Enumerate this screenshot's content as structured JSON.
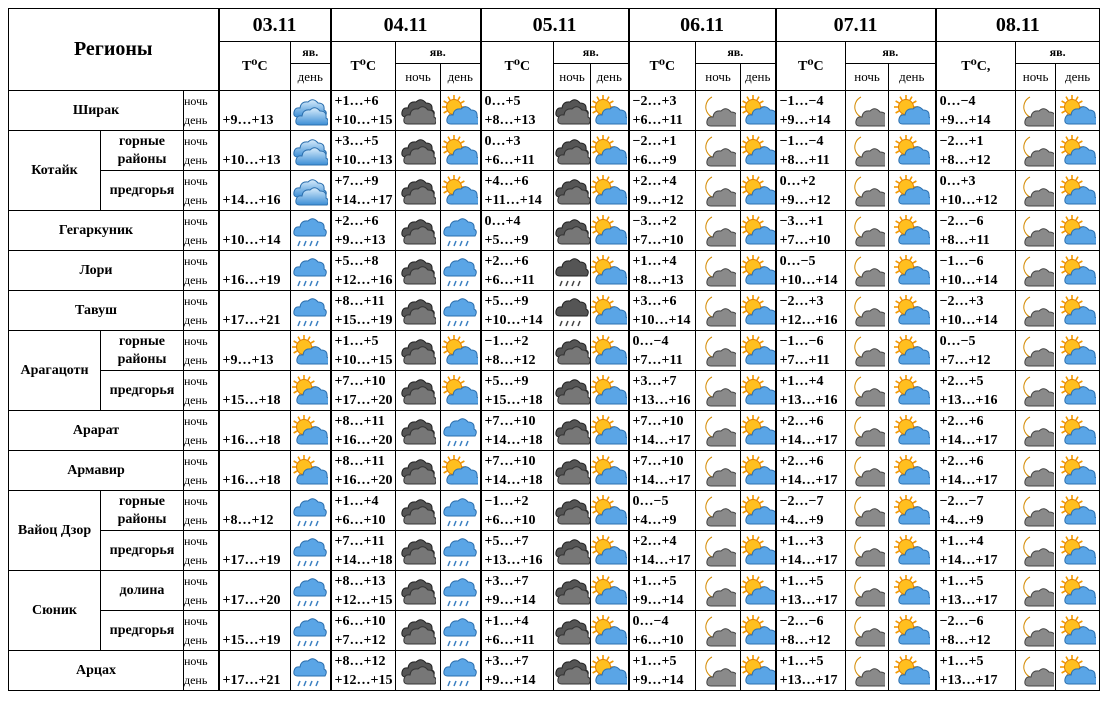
{
  "header": {
    "title": "Регионы",
    "dates": [
      {
        "date": "03.11",
        "t": "T⁰C",
        "icon": "яв.",
        "day": "день"
      },
      {
        "date": "04.11",
        "t": "T⁰C",
        "icon": "яв.",
        "night": "ночь",
        "day": "день"
      },
      {
        "date": "05.11",
        "t": "T⁰C",
        "icon": "яв.",
        "night": "ночь",
        "day": "день"
      },
      {
        "date": "06.11",
        "t": "T⁰C",
        "icon": "яв.",
        "night": "ночь",
        "day": "день"
      },
      {
        "date": "07.11",
        "t": "T⁰C",
        "icon": "яв.",
        "night": "ночь",
        "day": "день"
      },
      {
        "date": "08.11",
        "t": "T⁰C,",
        "icon": "яв.",
        "night": "ночь",
        "day": "день"
      }
    ]
  },
  "regions": [
    {
      "name": "Ширак",
      "subs": [
        {
          "labels": [
            "ночь",
            "день"
          ],
          "temps": [
            [
              "+9…+13"
            ],
            [
              "+1…+6",
              "+10…+15"
            ],
            [
              "0…+5",
              "+8…+13"
            ],
            [
              "−2…+3",
              "+6…+11"
            ],
            [
              "−1…−4",
              "+9…+14"
            ],
            [
              "0…−4",
              "+9…+14"
            ]
          ]
        }
      ]
    },
    {
      "name": "Котайк",
      "subs": [
        {
          "name": "горные районы",
          "labels": [
            "ночь",
            "день"
          ],
          "temps": [
            [
              "+10…+13"
            ],
            [
              "+3…+5",
              "+10…+13"
            ],
            [
              "0…+3",
              "+6…+11"
            ],
            [
              "−2…+1",
              "+6…+9"
            ],
            [
              "−1…−4",
              "+8…+11"
            ],
            [
              "−2…+1",
              "+8…+12"
            ]
          ]
        },
        {
          "name": "предгорья",
          "labels": [
            "ночь",
            "день"
          ],
          "temps": [
            [
              "+14…+16"
            ],
            [
              "+7…+9",
              "+14…+17"
            ],
            [
              "+4…+6",
              "+11…+14"
            ],
            [
              "+2…+4",
              "+9…+12"
            ],
            [
              "0…+2",
              "+9…+12"
            ],
            [
              "0…+3",
              "+10…+12"
            ]
          ]
        }
      ]
    },
    {
      "name": "Гегаркуник",
      "subs": [
        {
          "labels": [
            "ночь",
            "день"
          ],
          "temps": [
            [
              "+10…+14"
            ],
            [
              "+2…+6",
              "+9…+13"
            ],
            [
              "0…+4",
              "+5…+9"
            ],
            [
              "−3…+2",
              "+7…+10"
            ],
            [
              "−3…+1",
              "+7…+10"
            ],
            [
              "−2…−6",
              "+8…+11"
            ]
          ]
        }
      ]
    },
    {
      "name": "Лори",
      "subs": [
        {
          "labels": [
            "ночь",
            "день"
          ],
          "temps": [
            [
              "+16…+19"
            ],
            [
              "+5…+8",
              "+12…+16"
            ],
            [
              "+2…+6",
              "+6…+11"
            ],
            [
              "+1…+4",
              "+8…+13"
            ],
            [
              "0…−5",
              "+10…+14"
            ],
            [
              "−1…−6",
              "+10…+14"
            ]
          ]
        }
      ]
    },
    {
      "name": "Тавуш",
      "subs": [
        {
          "labels": [
            "ночь",
            "день"
          ],
          "temps": [
            [
              "+17…+21"
            ],
            [
              "+8…+11",
              "+15…+19"
            ],
            [
              "+5…+9",
              "+10…+14"
            ],
            [
              "+3…+6",
              "+10…+14"
            ],
            [
              "−2…+3",
              "+12…+16"
            ],
            [
              "−2…+3",
              "+10…+14"
            ]
          ]
        }
      ]
    },
    {
      "name": "Арагацотн",
      "subs": [
        {
          "name": "горные районы",
          "labels": [
            "ночь",
            "день"
          ],
          "temps": [
            [
              "+9…+13"
            ],
            [
              "+1…+5",
              "+10…+15"
            ],
            [
              "−1…+2",
              "+8…+12"
            ],
            [
              "0…−4",
              "+7…+11"
            ],
            [
              "−1…−6",
              "+7…+11"
            ],
            [
              "0…−5",
              "+7…+12"
            ]
          ]
        },
        {
          "name": "предгорья",
          "labels": [
            "ночь",
            "день"
          ],
          "temps": [
            [
              "+15…+18"
            ],
            [
              "+7…+10",
              "+17…+20"
            ],
            [
              "+5…+9",
              "+15…+18"
            ],
            [
              "+3…+7",
              "+13…+16"
            ],
            [
              "+1…+4",
              "+13…+16"
            ],
            [
              "+2…+5",
              "+13…+16"
            ]
          ]
        }
      ]
    },
    {
      "name": "Арарат",
      "subs": [
        {
          "labels": [
            "ночь",
            "день"
          ],
          "temps": [
            [
              "+16…+18"
            ],
            [
              "+8…+11",
              "+16…+20"
            ],
            [
              "+7…+10",
              "+14…+18"
            ],
            [
              "+7…+10",
              "+14…+17"
            ],
            [
              "+2…+6",
              "+14…+17"
            ],
            [
              "+2…+6",
              "+14…+17"
            ]
          ]
        }
      ]
    },
    {
      "name": "Армавир",
      "subs": [
        {
          "labels": [
            "ночь",
            "день"
          ],
          "temps": [
            [
              "+16…+18"
            ],
            [
              "+8…+11",
              "+16…+20"
            ],
            [
              "+7…+10",
              "+14…+18"
            ],
            [
              "+7…+10",
              "+14…+17"
            ],
            [
              "+2…+6",
              "+14…+17"
            ],
            [
              "+2…+6",
              "+14…+17"
            ]
          ]
        }
      ]
    },
    {
      "name": "Вайоц Дзор",
      "subs": [
        {
          "name": "горные районы",
          "labels": [
            "ночь",
            "день"
          ],
          "temps": [
            [
              "+8…+12"
            ],
            [
              "+1…+4",
              "+6…+10"
            ],
            [
              "−1…+2",
              "+6…+10"
            ],
            [
              "0…−5",
              "+4…+9"
            ],
            [
              "−2…−7",
              "+4…+9"
            ],
            [
              "−2…−7",
              "+4…+9"
            ]
          ]
        },
        {
          "name": "предгорья",
          "labels": [
            "ночь",
            "день"
          ],
          "temps": [
            [
              "+17…+19"
            ],
            [
              "+7…+11",
              "+14…+18"
            ],
            [
              "+5…+7",
              "+13…+16"
            ],
            [
              "+2…+4",
              "+14…+17"
            ],
            [
              "+1…+3",
              "+14…+17"
            ],
            [
              "+1…+4",
              "+14…+17"
            ]
          ]
        }
      ]
    },
    {
      "name": "Сюник",
      "subs": [
        {
          "name": "долина",
          "labels": [
            "ночь",
            "день"
          ],
          "temps": [
            [
              "+17…+20"
            ],
            [
              "+8…+13",
              "+12…+15"
            ],
            [
              "+3…+7",
              "+9…+14"
            ],
            [
              "+1…+5",
              "+9…+14"
            ],
            [
              "+1…+5",
              "+13…+17"
            ],
            [
              "+1…+5",
              "+13…+17"
            ]
          ]
        },
        {
          "name": "предгорья",
          "labels": [
            "ночь",
            "день"
          ],
          "temps": [
            [
              "+15…+19"
            ],
            [
              "+6…+10",
              "+7…+12"
            ],
            [
              "+1…+4",
              "+6…+11"
            ],
            [
              "0…−4",
              "+6…+10"
            ],
            [
              "−2…−6",
              "+8…+12"
            ],
            [
              "−2…−6",
              "+8…+12"
            ]
          ]
        }
      ]
    },
    {
      "name": "Арцах",
      "subs": [
        {
          "labels": [
            "ночь",
            "день"
          ],
          "temps": [
            [
              "+17…+21"
            ],
            [
              "+8…+12",
              "+12…+15"
            ],
            [
              "+3…+7",
              "+9…+14"
            ],
            [
              "+1…+5",
              "+9…+14"
            ],
            [
              "+1…+5",
              "+13…+17"
            ],
            [
              "+1…+5",
              "+13…+17"
            ]
          ]
        }
      ]
    }
  ]
}
